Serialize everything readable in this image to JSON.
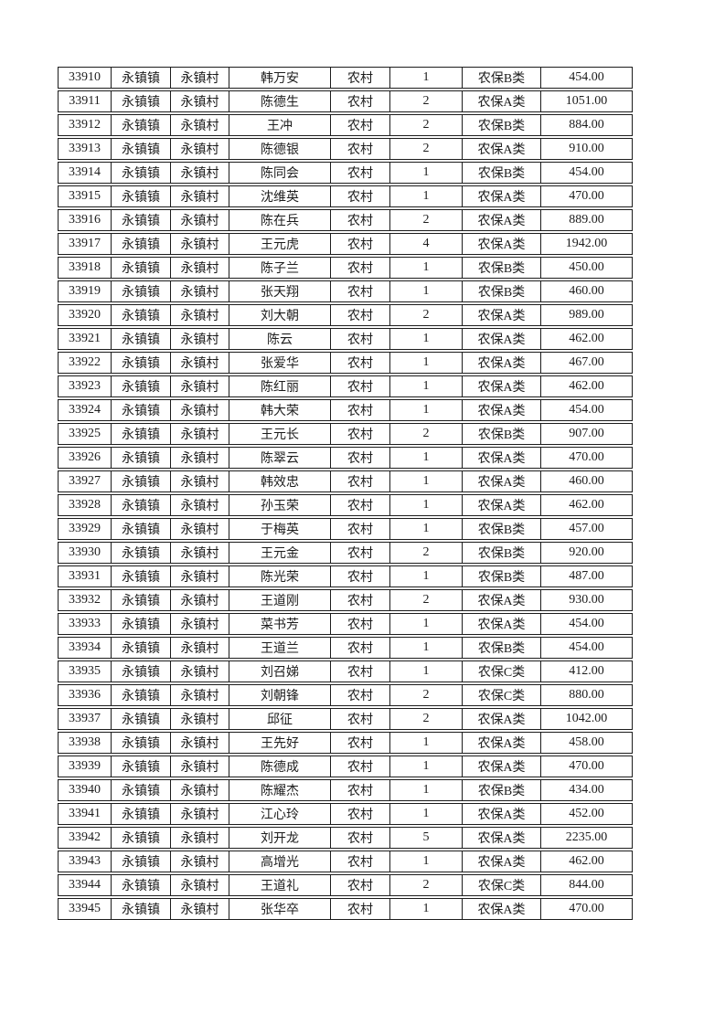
{
  "page": {
    "background_color": "#ffffff",
    "text_color": "#1c1c1c",
    "border_color": "#1c1c1c"
  },
  "table": {
    "column_keys": [
      "id",
      "town",
      "village",
      "person-name",
      "category",
      "count",
      "insurance-type",
      "amount"
    ],
    "rows": [
      [
        "33910",
        "永镇镇",
        "永镇村",
        "韩万安",
        "农村",
        "1",
        "农保B类",
        "454.00"
      ],
      [
        "33911",
        "永镇镇",
        "永镇村",
        "陈德生",
        "农村",
        "2",
        "农保A类",
        "1051.00"
      ],
      [
        "33912",
        "永镇镇",
        "永镇村",
        "王冲",
        "农村",
        "2",
        "农保B类",
        "884.00"
      ],
      [
        "33913",
        "永镇镇",
        "永镇村",
        "陈德银",
        "农村",
        "2",
        "农保A类",
        "910.00"
      ],
      [
        "33914",
        "永镇镇",
        "永镇村",
        "陈同会",
        "农村",
        "1",
        "农保B类",
        "454.00"
      ],
      [
        "33915",
        "永镇镇",
        "永镇村",
        "沈维英",
        "农村",
        "1",
        "农保A类",
        "470.00"
      ],
      [
        "33916",
        "永镇镇",
        "永镇村",
        "陈在兵",
        "农村",
        "2",
        "农保A类",
        "889.00"
      ],
      [
        "33917",
        "永镇镇",
        "永镇村",
        "王元虎",
        "农村",
        "4",
        "农保A类",
        "1942.00"
      ],
      [
        "33918",
        "永镇镇",
        "永镇村",
        "陈子兰",
        "农村",
        "1",
        "农保B类",
        "450.00"
      ],
      [
        "33919",
        "永镇镇",
        "永镇村",
        "张天翔",
        "农村",
        "1",
        "农保B类",
        "460.00"
      ],
      [
        "33920",
        "永镇镇",
        "永镇村",
        "刘大朝",
        "农村",
        "2",
        "农保A类",
        "989.00"
      ],
      [
        "33921",
        "永镇镇",
        "永镇村",
        "陈云",
        "农村",
        "1",
        "农保A类",
        "462.00"
      ],
      [
        "33922",
        "永镇镇",
        "永镇村",
        "张爱华",
        "农村",
        "1",
        "农保A类",
        "467.00"
      ],
      [
        "33923",
        "永镇镇",
        "永镇村",
        "陈红丽",
        "农村",
        "1",
        "农保A类",
        "462.00"
      ],
      [
        "33924",
        "永镇镇",
        "永镇村",
        "韩大荣",
        "农村",
        "1",
        "农保A类",
        "454.00"
      ],
      [
        "33925",
        "永镇镇",
        "永镇村",
        "王元长",
        "农村",
        "2",
        "农保B类",
        "907.00"
      ],
      [
        "33926",
        "永镇镇",
        "永镇村",
        "陈翠云",
        "农村",
        "1",
        "农保A类",
        "470.00"
      ],
      [
        "33927",
        "永镇镇",
        "永镇村",
        "韩效忠",
        "农村",
        "1",
        "农保A类",
        "460.00"
      ],
      [
        "33928",
        "永镇镇",
        "永镇村",
        "孙玉荣",
        "农村",
        "1",
        "农保A类",
        "462.00"
      ],
      [
        "33929",
        "永镇镇",
        "永镇村",
        "于梅英",
        "农村",
        "1",
        "农保B类",
        "457.00"
      ],
      [
        "33930",
        "永镇镇",
        "永镇村",
        "王元金",
        "农村",
        "2",
        "农保B类",
        "920.00"
      ],
      [
        "33931",
        "永镇镇",
        "永镇村",
        "陈光荣",
        "农村",
        "1",
        "农保B类",
        "487.00"
      ],
      [
        "33932",
        "永镇镇",
        "永镇村",
        "王道刚",
        "农村",
        "2",
        "农保A类",
        "930.00"
      ],
      [
        "33933",
        "永镇镇",
        "永镇村",
        "菜书芳",
        "农村",
        "1",
        "农保A类",
        "454.00"
      ],
      [
        "33934",
        "永镇镇",
        "永镇村",
        "王道兰",
        "农村",
        "1",
        "农保B类",
        "454.00"
      ],
      [
        "33935",
        "永镇镇",
        "永镇村",
        "刘召娣",
        "农村",
        "1",
        "农保C类",
        "412.00"
      ],
      [
        "33936",
        "永镇镇",
        "永镇村",
        "刘朝锋",
        "农村",
        "2",
        "农保C类",
        "880.00"
      ],
      [
        "33937",
        "永镇镇",
        "永镇村",
        "邱征",
        "农村",
        "2",
        "农保A类",
        "1042.00"
      ],
      [
        "33938",
        "永镇镇",
        "永镇村",
        "王先好",
        "农村",
        "1",
        "农保A类",
        "458.00"
      ],
      [
        "33939",
        "永镇镇",
        "永镇村",
        "陈德成",
        "农村",
        "1",
        "农保A类",
        "470.00"
      ],
      [
        "33940",
        "永镇镇",
        "永镇村",
        "陈耀杰",
        "农村",
        "1",
        "农保B类",
        "434.00"
      ],
      [
        "33941",
        "永镇镇",
        "永镇村",
        "江心玲",
        "农村",
        "1",
        "农保A类",
        "452.00"
      ],
      [
        "33942",
        "永镇镇",
        "永镇村",
        "刘开龙",
        "农村",
        "5",
        "农保A类",
        "2235.00"
      ],
      [
        "33943",
        "永镇镇",
        "永镇村",
        "高增光",
        "农村",
        "1",
        "农保A类",
        "462.00"
      ],
      [
        "33944",
        "永镇镇",
        "永镇村",
        "王道礼",
        "农村",
        "2",
        "农保C类",
        "844.00"
      ],
      [
        "33945",
        "永镇镇",
        "永镇村",
        "张华卒",
        "农村",
        "1",
        "农保A类",
        "470.00"
      ]
    ]
  }
}
